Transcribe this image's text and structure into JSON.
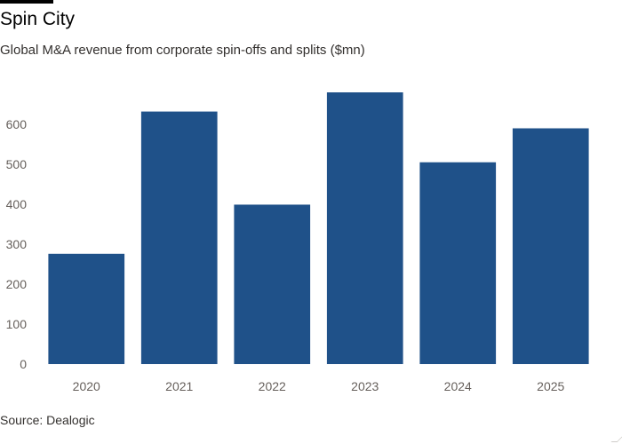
{
  "chart_data": {
    "type": "bar",
    "title": "Spin City",
    "subtitle": "Global M&A revenue from corporate spin-offs and splits ($mn)",
    "categories": [
      "2020",
      "2021",
      "2022",
      "2023",
      "2024",
      "2025"
    ],
    "values": [
      276,
      632,
      399,
      680,
      505,
      590
    ],
    "yticks": [
      0,
      100,
      200,
      300,
      400,
      500,
      600
    ],
    "ylim": [
      0,
      700
    ],
    "xlabel": "",
    "ylabel": "",
    "grid": false,
    "bar_color": "#1f5189",
    "source": "Source: Dealogic"
  }
}
